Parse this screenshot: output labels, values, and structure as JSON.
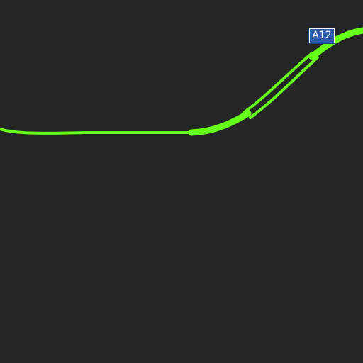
{
  "map": {
    "background_color": "#252525",
    "road_color": "#66ff1a",
    "road_shield": {
      "label": "A12",
      "background_color": "#2a5ab0",
      "text_color": "#ffffff"
    }
  }
}
